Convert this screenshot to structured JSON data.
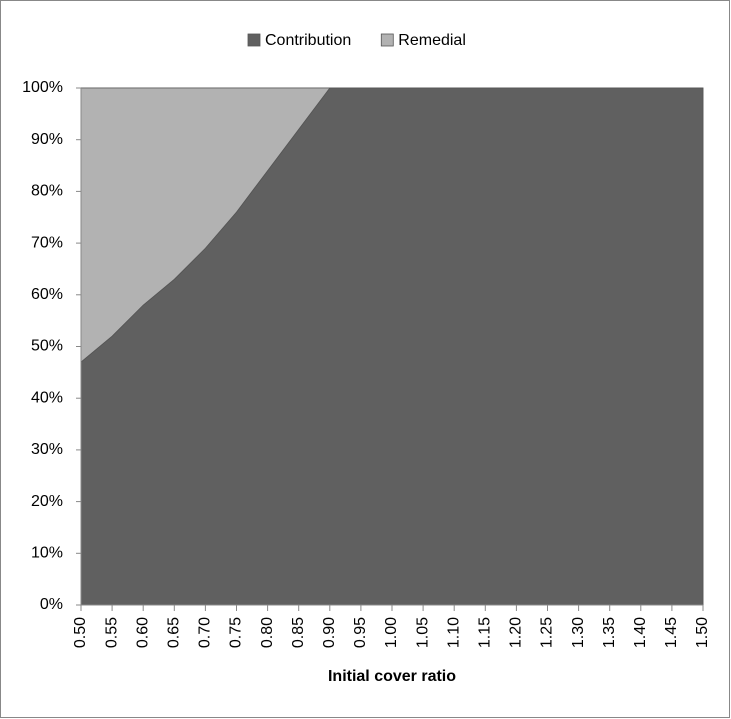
{
  "chart_data": {
    "type": "stacked-area",
    "x_label": "Initial cover ratio",
    "categories": [
      "0.50",
      "0.55",
      "0.60",
      "0.65",
      "0.70",
      "0.75",
      "0.80",
      "0.85",
      "0.90",
      "0.95",
      "1.00",
      "1.05",
      "1.10",
      "1.15",
      "1.20",
      "1.25",
      "1.30",
      "1.35",
      "1.40",
      "1.45",
      "1.50"
    ],
    "series": [
      {
        "name": "Contribution",
        "color": "#606060",
        "values": [
          47,
          52,
          58,
          63,
          69,
          76,
          84,
          92,
          100,
          100,
          100,
          100,
          100,
          100,
          100,
          100,
          100,
          100,
          100,
          100,
          100
        ]
      },
      {
        "name": "Remedial",
        "color": "#b2b2b2",
        "values": [
          53,
          48,
          42,
          37,
          31,
          24,
          16,
          8,
          0,
          0,
          0,
          0,
          0,
          0,
          0,
          0,
          0,
          0,
          0,
          0,
          0
        ]
      }
    ],
    "ylim": [
      0,
      100
    ],
    "yticks": [
      {
        "value": 0,
        "label": "0%"
      },
      {
        "value": 10,
        "label": "10%"
      },
      {
        "value": 20,
        "label": "20%"
      },
      {
        "value": 30,
        "label": "30%"
      },
      {
        "value": 40,
        "label": "40%"
      },
      {
        "value": 50,
        "label": "50%"
      },
      {
        "value": 60,
        "label": "60%"
      },
      {
        "value": 70,
        "label": "70%"
      },
      {
        "value": 80,
        "label": "80%"
      },
      {
        "value": 90,
        "label": "90%"
      },
      {
        "value": 100,
        "label": "100%"
      }
    ],
    "legend": "top"
  }
}
